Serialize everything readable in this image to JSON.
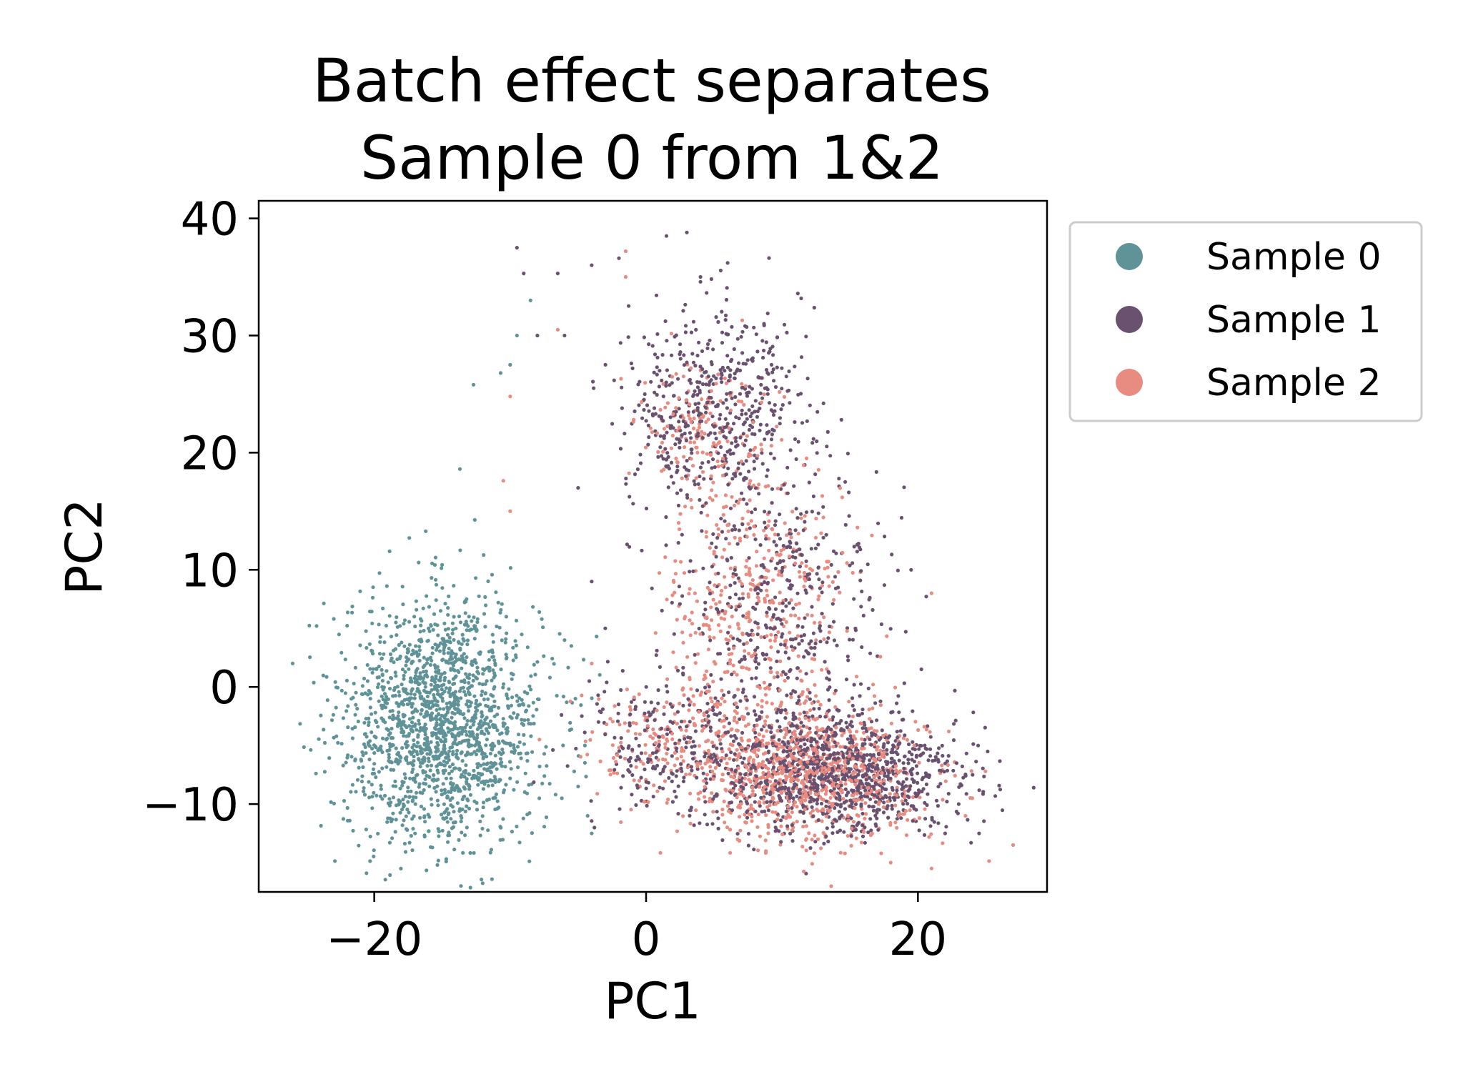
{
  "chart_data": {
    "type": "scatter",
    "title": [
      "Batch effect separates",
      "Sample 0 from 1&2"
    ],
    "xlabel": "PC1",
    "ylabel": "PC2",
    "xlim": [
      -28.5,
      29.5
    ],
    "ylim": [
      -17.5,
      41.5
    ],
    "xticks": [
      -20,
      0,
      20
    ],
    "yticks": [
      -10,
      0,
      10,
      20,
      30,
      40
    ],
    "xtick_labels": [
      "−20",
      "0",
      "20"
    ],
    "ytick_labels": [
      "−10",
      "0",
      "10",
      "20",
      "30",
      "40"
    ],
    "grid": false,
    "legend_position": "outside-right-top",
    "series": [
      {
        "name": "Sample 0",
        "color": "#5f9398",
        "clusters": [
          {
            "cx": -15,
            "cy": -3,
            "sx": 3.6,
            "sy": 5.2,
            "n": 1700
          }
        ],
        "points": [
          [
            -26,
            2
          ],
          [
            -8.5,
            33
          ],
          [
            -9.5,
            30
          ],
          [
            -10,
            27.5
          ],
          [
            -10.7,
            26.8
          ],
          [
            -12.7,
            25.8
          ],
          [
            -13.7,
            18.6
          ],
          [
            -4,
            -12.5
          ],
          [
            -4.3,
            -11
          ],
          [
            -5,
            -8.5
          ],
          [
            -4.5,
            -5
          ],
          [
            -5.5,
            3.5
          ],
          [
            -6,
            4
          ],
          [
            -5.2,
            -1
          ],
          [
            -6.2,
            -9.5
          ]
        ]
      },
      {
        "name": "Sample 1",
        "color": "#6a5170",
        "clusters": [
          {
            "cx": 14,
            "cy": -7.5,
            "sx": 4.6,
            "sy": 2.6,
            "n": 1050
          },
          {
            "cx": 5,
            "cy": 24,
            "sx": 3.2,
            "sy": 4.2,
            "n": 520
          },
          {
            "cx": 10,
            "cy": 7,
            "sx": 4.0,
            "sy": 6.0,
            "n": 480
          },
          {
            "cx": 2,
            "cy": -5,
            "sx": 3.8,
            "sy": 2.6,
            "n": 220
          }
        ],
        "points": [
          [
            1.5,
            38.5
          ],
          [
            3,
            38.8
          ],
          [
            -2,
            36.6
          ],
          [
            -9,
            35.3
          ],
          [
            -9.5,
            37.5
          ],
          [
            -6.5,
            35.3
          ],
          [
            -4,
            36
          ],
          [
            6,
            36.2
          ],
          [
            4,
            35
          ],
          [
            -8,
            30
          ],
          [
            -6,
            30
          ],
          [
            22,
            -12.5
          ],
          [
            24.5,
            -12.5
          ],
          [
            23,
            -10
          ],
          [
            20.5,
            -5
          ],
          [
            19.5,
            10
          ],
          [
            -5,
            17
          ],
          [
            -4,
            9
          ],
          [
            -3,
            5
          ],
          [
            -3.5,
            -3
          ]
        ]
      },
      {
        "name": "Sample 2",
        "color": "#e88b80",
        "clusters": [
          {
            "cx": 12,
            "cy": -7.5,
            "sx": 4.2,
            "sy": 2.8,
            "n": 900
          },
          {
            "cx": 8,
            "cy": 7,
            "sx": 3.3,
            "sy": 6.5,
            "n": 450
          },
          {
            "cx": 4,
            "cy": 22,
            "sx": 2.4,
            "sy": 3.0,
            "n": 150
          },
          {
            "cx": 1,
            "cy": -5,
            "sx": 3.5,
            "sy": 2.5,
            "n": 160
          }
        ],
        "points": [
          [
            -1.5,
            37.2
          ],
          [
            -10,
            24.8
          ],
          [
            -10.5,
            17.6
          ],
          [
            -10,
            15
          ],
          [
            -6.5,
            30.5
          ],
          [
            -1.5,
            35
          ],
          [
            27,
            -13.5
          ],
          [
            23.5,
            -11
          ],
          [
            21,
            -15.5
          ],
          [
            24,
            -9.5
          ],
          [
            21,
            8
          ],
          [
            18,
            -15
          ],
          [
            -4,
            2
          ],
          [
            -3,
            -4
          ]
        ]
      }
    ]
  }
}
